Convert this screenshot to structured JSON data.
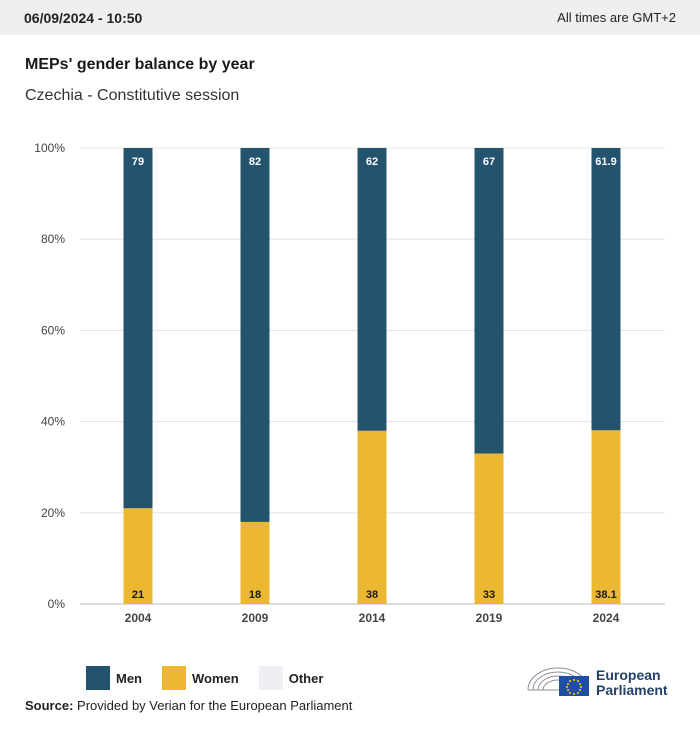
{
  "header": {
    "datetime": "06/09/2024 - 10:50",
    "timezone_note": "All times are GMT+2"
  },
  "title": "MEPs' gender balance by year",
  "subtitle": "Czechia - Constitutive session",
  "chart_data": {
    "type": "bar",
    "stacked": true,
    "categories": [
      "2004",
      "2009",
      "2014",
      "2019",
      "2024"
    ],
    "series": [
      {
        "name": "Women",
        "values": [
          21,
          18,
          38,
          33,
          38.1
        ],
        "color": "#ecb731"
      },
      {
        "name": "Men",
        "values": [
          79,
          82,
          62,
          67,
          61.9
        ],
        "color": "#24536e"
      },
      {
        "name": "Other",
        "values": [
          0,
          0,
          0,
          0,
          0
        ],
        "color": "#eeeff2"
      }
    ],
    "data_labels": {
      "Women": [
        "21",
        "18",
        "38",
        "33",
        "38.1"
      ],
      "Men": [
        "79",
        "82",
        "62",
        "67",
        "61.9"
      ]
    },
    "y_ticks": [
      "0%",
      "20%",
      "40%",
      "60%",
      "80%",
      "100%"
    ],
    "ylim": [
      0,
      100
    ],
    "grid": true,
    "legend_position": "bottom-left"
  },
  "legend": {
    "men": "Men",
    "women": "Women",
    "other": "Other"
  },
  "source": {
    "label": "Source:",
    "text": " Provided by Verian for the European Parliament"
  },
  "logo": {
    "line1": "European",
    "line2": "Parliament"
  }
}
